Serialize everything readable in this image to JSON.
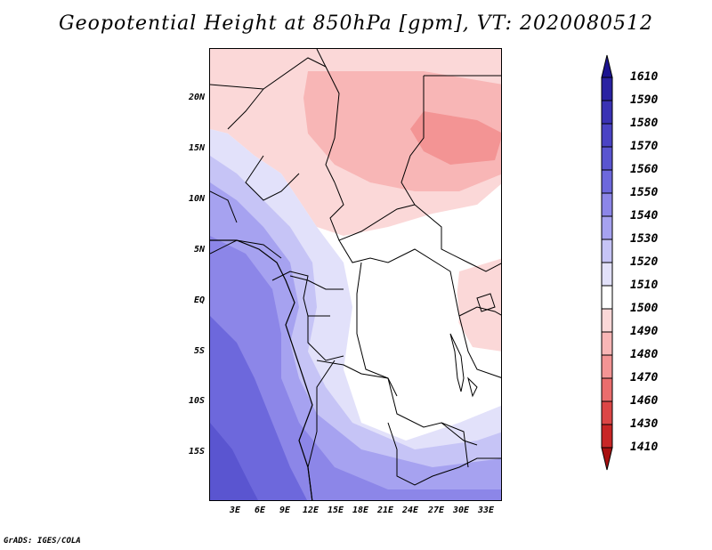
{
  "title": "Geopotential Height at 850hPa [gpm], VT: 2020080512",
  "credit": "GrADS: IGES/COLA",
  "map": {
    "lat_ticks": [
      "20N",
      "15N",
      "10N",
      "5N",
      "EQ",
      "5S",
      "10S",
      "15S"
    ],
    "lon_ticks": [
      "3E",
      "6E",
      "9E",
      "12E",
      "15E",
      "18E",
      "21E",
      "24E",
      "27E",
      "30E",
      "33E"
    ]
  },
  "colorbar": {
    "levels": [
      "1610",
      "1590",
      "1580",
      "1570",
      "1560",
      "1550",
      "1540",
      "1530",
      "1520",
      "1510",
      "1500",
      "1490",
      "1480",
      "1470",
      "1460",
      "1430",
      "1410"
    ],
    "colors": [
      "#1c1490",
      "#2a22a2",
      "#3a32b4",
      "#4a43c4",
      "#5a55d0",
      "#6d68dc",
      "#8c86e8",
      "#a6a2f0",
      "#c6c4f6",
      "#e2e1fa",
      "#ffffff",
      "#fbd8d8",
      "#f8b6b6",
      "#f39494",
      "#ea6d6d",
      "#dc4646",
      "#c82626",
      "#a81010"
    ]
  }
}
